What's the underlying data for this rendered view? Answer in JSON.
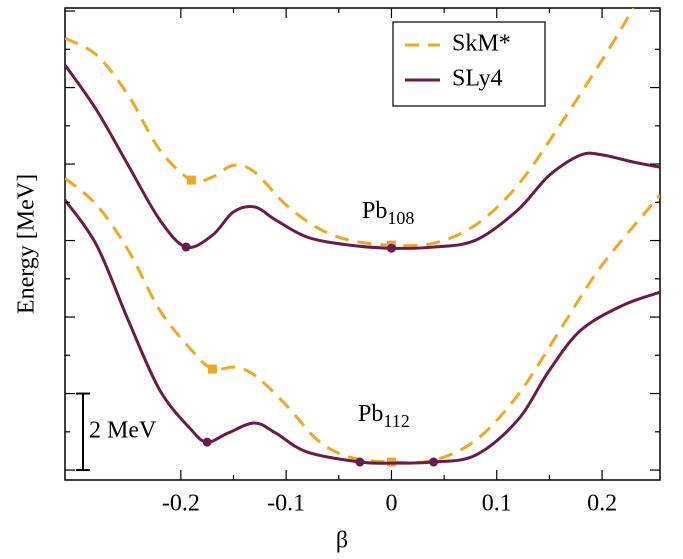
{
  "chart_data": {
    "type": "line",
    "x_label": "β",
    "y_label": "Energy [MeV]",
    "xlim": [
      -0.31,
      0.255
    ],
    "ylim": [
      -0.26,
      12.08
    ],
    "xticks": [
      -0.2,
      -0.1,
      0,
      0.1,
      0.2
    ],
    "yticks": [
      0,
      2,
      4,
      6,
      8,
      10,
      12
    ],
    "legend": "upper-right",
    "annotations": [
      {
        "text": "Pb",
        "sub": "108"
      },
      {
        "text": "Pb",
        "sub": "112"
      }
    ],
    "scale_bar": {
      "value": 2,
      "label": "2 MeV"
    },
    "series": [
      {
        "name": "SkM*",
        "color": "#f0a820",
        "style": "dashed",
        "marker": "square",
        "curves": [
          {
            "x": [
              -0.31,
              -0.28,
              -0.25,
              -0.22,
              -0.19,
              -0.17,
              -0.15,
              -0.13,
              -0.1,
              -0.07,
              -0.04,
              0,
              0.04,
              0.08,
              0.12,
              0.16,
              0.2,
              0.23
            ],
            "values": [
              11.29,
              10.85,
              9.8,
              8.37,
              7.58,
              7.66,
              7.97,
              7.79,
              6.93,
              6.33,
              6.01,
              5.88,
              5.93,
              6.41,
              7.45,
              9.02,
              10.72,
              12.08
            ],
            "minima": {
              "x": [
                -0.19,
                0
              ],
              "values": [
                7.58,
                5.88
              ]
            }
          },
          {
            "x": [
              -0.31,
              -0.28,
              -0.25,
              -0.22,
              -0.19,
              -0.17,
              -0.15,
              -0.13,
              -0.1,
              -0.07,
              -0.04,
              0,
              0.04,
              0.08,
              0.12,
              0.16,
              0.2,
              0.255
            ],
            "values": [
              7.63,
              6.93,
              5.75,
              4.18,
              3.14,
              2.64,
              2.69,
              2.48,
              1.7,
              0.78,
              0.34,
              0.21,
              0.26,
              0.78,
              1.96,
              3.66,
              5.36,
              7.19
            ],
            "minima": {
              "x": [
                -0.17,
                0
              ],
              "values": [
                2.64,
                0.21
              ]
            }
          }
        ]
      },
      {
        "name": "SLy4",
        "color": "#6b1a4d",
        "style": "solid",
        "marker": "circle",
        "curves": [
          {
            "x": [
              -0.31,
              -0.28,
              -0.25,
              -0.22,
              -0.195,
              -0.17,
              -0.15,
              -0.13,
              -0.11,
              -0.08,
              -0.04,
              0,
              0.04,
              0.08,
              0.12,
              0.15,
              0.18,
              0.2,
              0.23,
              0.255
            ],
            "values": [
              10.59,
              9.41,
              7.97,
              6.54,
              5.83,
              6.14,
              6.75,
              6.88,
              6.54,
              6.09,
              5.88,
              5.8,
              5.83,
              6.01,
              6.8,
              7.71,
              8.24,
              8.24,
              8.05,
              7.92
            ],
            "minima": {
              "x": [
                -0.195,
                0
              ],
              "values": [
                5.83,
                5.8
              ]
            }
          },
          {
            "x": [
              -0.31,
              -0.28,
              -0.25,
              -0.22,
              -0.19,
              -0.175,
              -0.155,
              -0.13,
              -0.11,
              -0.08,
              -0.03,
              0,
              0.04,
              0.08,
              0.12,
              0.15,
              0.18,
              0.22,
              0.255
            ],
            "values": [
              7.06,
              5.88,
              3.92,
              2.09,
              1.05,
              0.73,
              0.97,
              1.23,
              0.97,
              0.47,
              0.21,
              0.18,
              0.21,
              0.39,
              1.31,
              2.61,
              3.66,
              4.31,
              4.65
            ],
            "minima": {
              "x": [
                -0.175,
                -0.03,
                0.04
              ],
              "values": [
                0.73,
                0.21,
                0.21
              ]
            }
          }
        ]
      }
    ]
  }
}
